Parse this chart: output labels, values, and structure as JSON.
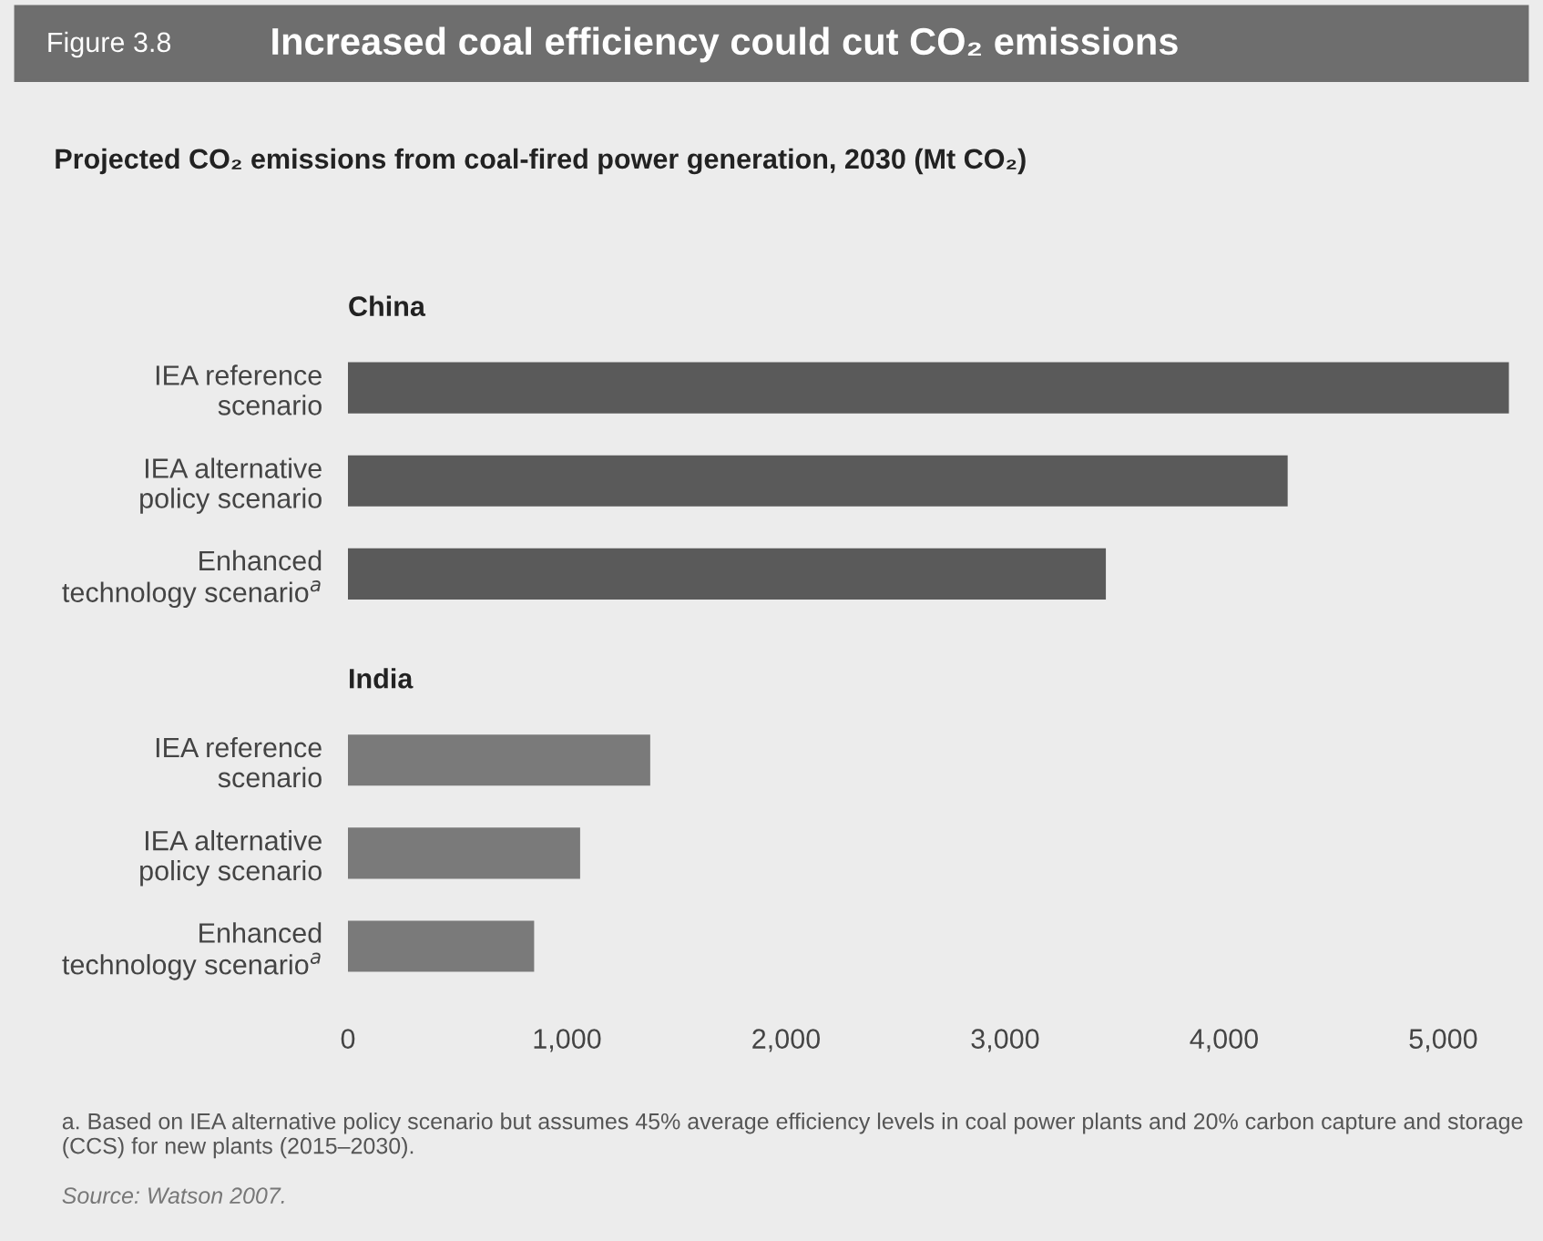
{
  "chart_data": {
    "type": "bar",
    "orientation": "horizontal",
    "title": "Increased coal efficiency could cut CO₂ emissions",
    "subtitle": "Projected CO₂ emissions from coal-fired power generation, 2030 (Mt CO₂)",
    "categories": [
      "China",
      "IEA reference\nscenario",
      "IEA alternative\npolicy scenario",
      "Enhanced\ntechnology scenario$^{a}$",
      "India",
      "IEA reference\nscenario",
      "IEA alternative\npolicy scenario",
      "Enhanced\ntechnology scenario$^{a}$"
    ],
    "values": [
      null,
      5300,
      4290,
      3460,
      null,
      1380,
      1060,
      850
    ],
    "colors": [
      "#5a5a5a",
      "#5a5a5a",
      "#5a5a5a",
      "#5a5a5a",
      "#7a7a7a",
      "#7a7a7a",
      "#7a7a7a",
      "#7a7a7a"
    ],
    "xlim": [
      0,
      5350
    ],
    "xticks": [
      0,
      {
        "value": 1000,
        "label": "1,000"
      },
      {
        "value": 2000,
        "label": "2,000"
      },
      {
        "value": 3000,
        "label": "3,000"
      },
      {
        "value": 4000,
        "label": "4,000"
      },
      {
        "value": 5000,
        "label": "5,000"
      }
    ],
    "grid": false,
    "legend": false,
    "annotations": [
      "Figure 3.8",
      "a. Based on IEA alternative policy scenario but assumes 45% average efficiency levels in coal power plants and 20% carbon capture and storage (CCS) for new plants (2015–2030).",
      "Source: Watson 2007."
    ]
  }
}
